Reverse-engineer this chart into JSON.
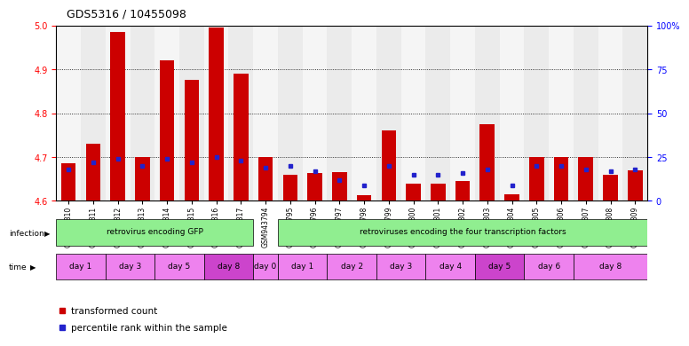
{
  "title": "GDS5316 / 10455098",
  "samples": [
    "GSM943810",
    "GSM943811",
    "GSM943812",
    "GSM943813",
    "GSM943814",
    "GSM943815",
    "GSM943816",
    "GSM943817",
    "GSM943794",
    "GSM943795",
    "GSM943796",
    "GSM943797",
    "GSM943798",
    "GSM943799",
    "GSM943800",
    "GSM943801",
    "GSM943802",
    "GSM943803",
    "GSM943804",
    "GSM943805",
    "GSM943806",
    "GSM943807",
    "GSM943808",
    "GSM943809"
  ],
  "red_values": [
    4.685,
    4.73,
    4.985,
    4.7,
    4.92,
    4.875,
    4.995,
    4.89,
    4.7,
    4.66,
    4.663,
    4.666,
    4.612,
    4.76,
    4.64,
    4.64,
    4.645,
    4.775,
    4.615,
    4.7,
    4.7,
    4.7,
    4.66,
    4.67
  ],
  "blue_values_pct": [
    18,
    22,
    24,
    20,
    24,
    22,
    25,
    23,
    19,
    20,
    17,
    12,
    9,
    20,
    15,
    15,
    16,
    18,
    9,
    20,
    20,
    18,
    17,
    18
  ],
  "baseline": 4.6,
  "ylim_left": [
    4.6,
    5.0
  ],
  "ylim_right": [
    0,
    100
  ],
  "yticks_left": [
    4.6,
    4.7,
    4.8,
    4.9,
    5.0
  ],
  "yticks_right": [
    0,
    25,
    50,
    75,
    100
  ],
  "ytick_labels_right": [
    "0",
    "25",
    "50",
    "75",
    "100%"
  ],
  "bar_color": "#CC0000",
  "blue_color": "#2222CC",
  "bg_color": "#FFFFFF",
  "infection_groups": [
    {
      "label": "retrovirus encoding GFP",
      "start": 0,
      "end": 7,
      "color": "#90EE90"
    },
    {
      "label": "retroviruses encoding the four transcription factors",
      "start": 8,
      "end": 23,
      "color": "#90EE90"
    }
  ],
  "time_groups": [
    {
      "label": "day 1",
      "start": 0,
      "end": 1,
      "color": "#EE82EE"
    },
    {
      "label": "day 3",
      "start": 2,
      "end": 3,
      "color": "#EE82EE"
    },
    {
      "label": "day 5",
      "start": 4,
      "end": 5,
      "color": "#EE82EE"
    },
    {
      "label": "day 8",
      "start": 6,
      "end": 7,
      "color": "#CC44CC"
    },
    {
      "label": "day 0",
      "start": 8,
      "end": 8,
      "color": "#EE82EE"
    },
    {
      "label": "day 1",
      "start": 9,
      "end": 10,
      "color": "#EE82EE"
    },
    {
      "label": "day 2",
      "start": 11,
      "end": 12,
      "color": "#EE82EE"
    },
    {
      "label": "day 3",
      "start": 13,
      "end": 14,
      "color": "#EE82EE"
    },
    {
      "label": "day 4",
      "start": 15,
      "end": 16,
      "color": "#EE82EE"
    },
    {
      "label": "day 5",
      "start": 17,
      "end": 18,
      "color": "#CC44CC"
    },
    {
      "label": "day 6",
      "start": 19,
      "end": 20,
      "color": "#EE82EE"
    },
    {
      "label": "day 8",
      "start": 21,
      "end": 23,
      "color": "#EE82EE"
    }
  ],
  "legend_items": [
    {
      "label": "transformed count",
      "color": "#CC0000"
    },
    {
      "label": "percentile rank within the sample",
      "color": "#2222CC"
    }
  ]
}
